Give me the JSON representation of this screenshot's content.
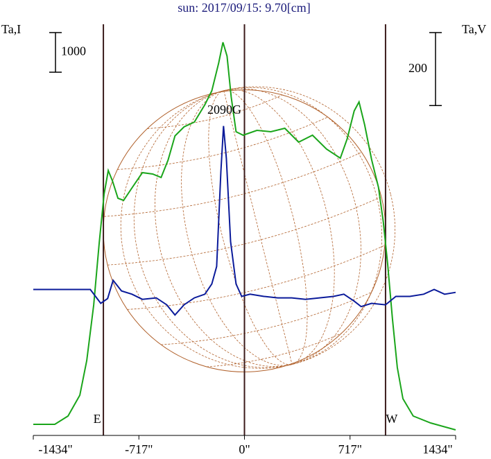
{
  "chart_data": {
    "type": "line",
    "title": "sun: 2017/09/15: 9.70[cm]",
    "xlim": [
      -1434,
      1434
    ],
    "xticks": [
      {
        "value": -1434,
        "label": "-1434\""
      },
      {
        "value": -717,
        "label": "-717\""
      },
      {
        "value": 0,
        "label": "0\""
      },
      {
        "value": 717,
        "label": "717\""
      },
      {
        "value": 1434,
        "label": "1434\""
      }
    ],
    "ylim": [
      0,
      10500
    ],
    "y2lim": [
      -400,
      740
    ],
    "scale_bars": [
      {
        "label": "1000",
        "value": 1000,
        "axis": "y"
      },
      {
        "label": "200",
        "value": 200,
        "axis": "y2"
      }
    ],
    "vlines": [
      -958,
      0,
      958
    ],
    "disk_radius": 958,
    "annotations": [
      {
        "text": "E",
        "x": -1000
      },
      {
        "text": "W",
        "x": 1000
      },
      {
        "text": "2090G",
        "x": -146
      }
    ],
    "series": [
      {
        "name": "Ta,I",
        "color": "#1aa51a",
        "axis": "y",
        "x": [
          -1434,
          -1288,
          -1198,
          -1118,
          -1071,
          -1024,
          -986,
          -953,
          -925,
          -896,
          -859,
          -821,
          -764,
          -693,
          -623,
          -566,
          -519,
          -472,
          -410,
          -340,
          -269,
          -222,
          -175,
          -146,
          -118,
          -90,
          -57,
          -9,
          85,
          179,
          274,
          368,
          462,
          557,
          651,
          698,
          745,
          778,
          816,
          863,
          910,
          943,
          972,
          1005,
          1038,
          1076,
          1146,
          1264,
          1434
        ],
        "values": [
          280,
          280,
          490,
          1015,
          1890,
          3290,
          4865,
          6090,
          6685,
          6423,
          5985,
          5933,
          6248,
          6633,
          6598,
          6510,
          6948,
          7560,
          7788,
          7910,
          8348,
          8698,
          9398,
          9923,
          9573,
          8540,
          7665,
          7578,
          7700,
          7665,
          7753,
          7403,
          7578,
          7228,
          6999,
          7490,
          8190,
          8418,
          7840,
          6965,
          6265,
          5390,
          4340,
          2940,
          1715,
          928,
          490,
          315,
          140
        ]
      },
      {
        "name": "Ta,V",
        "color": "#0a1a9a",
        "axis": "y2",
        "x": [
          -1434,
          -1288,
          -1047,
          -976,
          -929,
          -892,
          -835,
          -764,
          -693,
          -599,
          -528,
          -472,
          -410,
          -340,
          -269,
          -222,
          -189,
          -160,
          -142,
          -123,
          -94,
          -57,
          -19,
          38,
          132,
          226,
          321,
          415,
          509,
          604,
          675,
          745,
          792,
          863,
          958,
          1028,
          1123,
          1217,
          1288,
          1359,
          1434
        ],
        "values": [
          0,
          0,
          0,
          -38,
          -25,
          25,
          -4,
          -13,
          -27,
          -23,
          -42,
          -70,
          -42,
          -23,
          -13,
          15,
          63,
          323,
          448,
          359,
          131,
          15,
          -19,
          -13,
          -19,
          -23,
          -23,
          -27,
          -23,
          -19,
          -13,
          -32,
          -47,
          -38,
          -42,
          -19,
          -19,
          -13,
          0,
          -13,
          -8
        ]
      }
    ]
  }
}
